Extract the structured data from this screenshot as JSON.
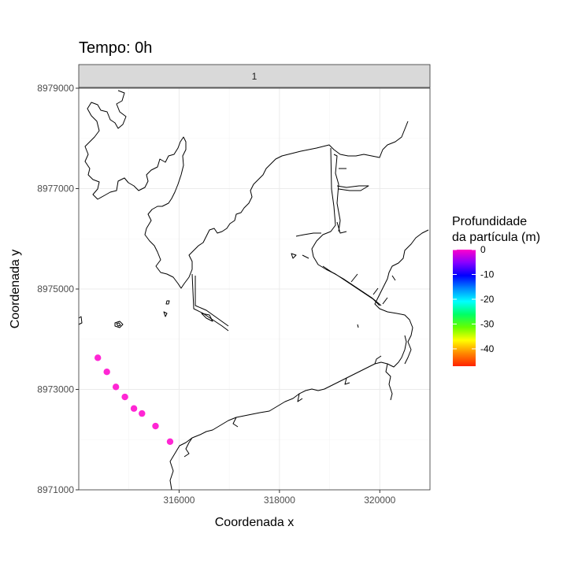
{
  "title": "Tempo: 0h",
  "facet_label": "1",
  "chart_data": {
    "type": "scatter",
    "title": "Tempo: 0h",
    "xlabel": "Coordenada x",
    "ylabel": "Coordenada y",
    "xlim": [
      314000,
      321000
    ],
    "ylim": [
      8971000,
      8979000
    ],
    "x_ticks": [
      316000,
      318000,
      320000
    ],
    "x_tick_labels": [
      "316000",
      "318000",
      "320000"
    ],
    "y_ticks": [
      8971000,
      8973000,
      8975000,
      8977000,
      8979000
    ],
    "y_tick_labels": [
      "8971000",
      "8973000",
      "8975000",
      "8977000",
      "8979000"
    ],
    "grid": true,
    "facet": "1",
    "legend": {
      "title_line1": "Profundidade",
      "title_line2": "da partícula (m)",
      "position": "right",
      "range": [
        -47,
        0
      ],
      "ticks": [
        0,
        -10,
        -20,
        -30,
        -40
      ],
      "tick_labels": [
        "0",
        "-10",
        "-20",
        "-30",
        "-40"
      ],
      "colors": [
        "#ff00cc",
        "#8800ff",
        "#0000ff",
        "#0088ff",
        "#00ffff",
        "#00ff66",
        "#66ff00",
        "#ffff00",
        "#ff8800",
        "#ff2200"
      ]
    },
    "points": [
      {
        "x": 314380,
        "y": 8973630,
        "depth": -1
      },
      {
        "x": 314560,
        "y": 8973350,
        "depth": -1
      },
      {
        "x": 314740,
        "y": 8973050,
        "depth": -1
      },
      {
        "x": 314920,
        "y": 8972850,
        "depth": -1
      },
      {
        "x": 315100,
        "y": 8972620,
        "depth": -1
      },
      {
        "x": 315260,
        "y": 8972520,
        "depth": -1
      },
      {
        "x": 315530,
        "y": 8972270,
        "depth": -1
      },
      {
        "x": 315820,
        "y": 8971960,
        "depth": -1
      }
    ]
  }
}
